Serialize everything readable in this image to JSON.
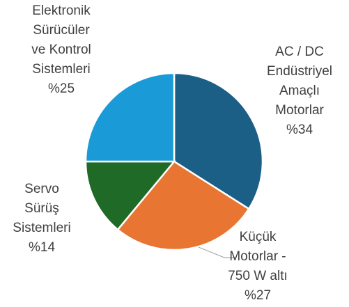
{
  "chart_data": {
    "type": "pie",
    "categories": [
      "AC / DC\nEndüstriyel\nAmaçlı\nMotorlar",
      "Küçük\nMotorlar -\n750 W altı",
      "Servo\nSürüş\nSistemleri",
      "Elektronik\nSürücüler\nve Kontrol\nSistemleri"
    ],
    "values": [
      34,
      27,
      14,
      25
    ],
    "value_labels": [
      "%34",
      "%27",
      "%14",
      "%25"
    ],
    "colors": [
      "#1b5f86",
      "#e97532",
      "#1e6a26",
      "#1a9bd7"
    ]
  }
}
